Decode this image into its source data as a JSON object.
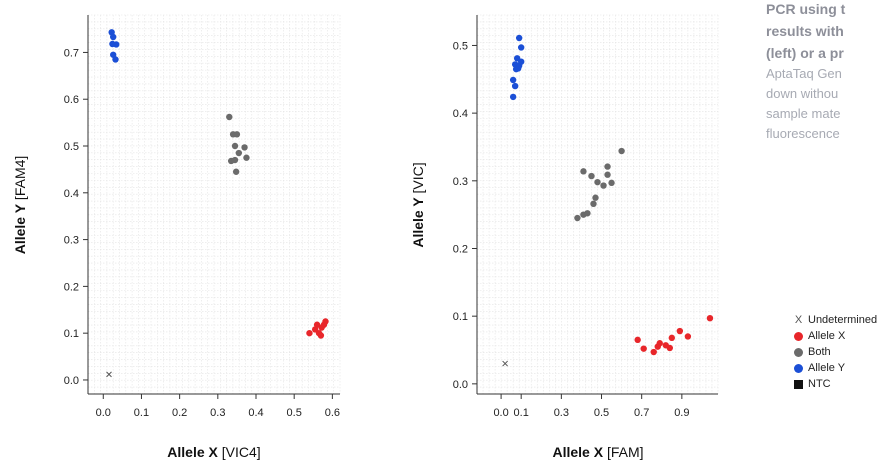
{
  "caption": {
    "title_lines": [
      "PCR using t",
      "results with",
      "(left) or a pr"
    ],
    "body_lines": [
      "AptaTaq Gen",
      "down withou",
      "sample mate",
      "fluorescence"
    ]
  },
  "legend": {
    "items": [
      {
        "label": "Undetermined",
        "marker": "x",
        "color": "#555555"
      },
      {
        "label": "Allele X",
        "marker": "dot",
        "color": "#e8262a"
      },
      {
        "label": "Both",
        "marker": "dot",
        "color": "#6b6b6b"
      },
      {
        "label": "Allele Y",
        "marker": "dot",
        "color": "#1b4fd6"
      },
      {
        "label": "NTC",
        "marker": "square",
        "color": "#111111"
      }
    ]
  },
  "chart_data": [
    {
      "type": "scatter",
      "title": "",
      "xlabel_bold": "Allele X",
      "xlabel_rest": " [VIC4]",
      "ylabel_bold": "Allele Y",
      "ylabel_rest": " [FAM4]",
      "xlim": [
        -0.04,
        0.62
      ],
      "ylim": [
        -0.03,
        0.78
      ],
      "x_ticks": [
        0.0,
        0.1,
        0.2,
        0.3,
        0.4,
        0.5,
        0.6
      ],
      "x_tick_labels": [
        "0.0",
        "0.1",
        "0.2",
        "0.3",
        "0.4",
        "0.5",
        "0.6"
      ],
      "y_ticks": [
        0.0,
        0.1,
        0.2,
        0.3,
        0.4,
        0.5,
        0.6,
        0.7
      ],
      "y_tick_labels": [
        "0.0",
        "0.1",
        "0.2",
        "0.3",
        "0.4",
        "0.5",
        "0.6",
        "0.7"
      ],
      "grid": true,
      "series": [
        {
          "name": "Undetermined",
          "marker": "x",
          "color": "#555555",
          "points": [
            [
              0.015,
              0.012
            ]
          ]
        },
        {
          "name": "Allele X",
          "marker": "dot",
          "color": "#e8262a",
          "points": [
            [
              0.54,
              0.1
            ],
            [
              0.555,
              0.108
            ],
            [
              0.56,
              0.118
            ],
            [
              0.565,
              0.1
            ],
            [
              0.57,
              0.095
            ],
            [
              0.572,
              0.112
            ],
            [
              0.578,
              0.118
            ],
            [
              0.582,
              0.125
            ]
          ]
        },
        {
          "name": "Both",
          "marker": "dot",
          "color": "#6b6b6b",
          "points": [
            [
              0.33,
              0.562
            ],
            [
              0.34,
              0.525
            ],
            [
              0.35,
              0.525
            ],
            [
              0.345,
              0.5
            ],
            [
              0.355,
              0.485
            ],
            [
              0.335,
              0.468
            ],
            [
              0.345,
              0.47
            ],
            [
              0.37,
              0.497
            ],
            [
              0.375,
              0.475
            ],
            [
              0.348,
              0.445
            ]
          ]
        },
        {
          "name": "Allele Y",
          "marker": "dot",
          "color": "#1b4fd6",
          "points": [
            [
              0.022,
              0.743
            ],
            [
              0.026,
              0.733
            ],
            [
              0.024,
              0.718
            ],
            [
              0.034,
              0.717
            ],
            [
              0.026,
              0.695
            ],
            [
              0.032,
              0.685
            ]
          ]
        }
      ]
    },
    {
      "type": "scatter",
      "title": "",
      "xlabel_bold": "Allele X",
      "xlabel_rest": " [FAM]",
      "ylabel_bold": "Allele Y",
      "ylabel_rest": " [VIC]",
      "xlim": [
        -0.12,
        1.08
      ],
      "ylim": [
        -0.015,
        0.545
      ],
      "x_ticks": [
        0.0,
        0.1,
        0.3,
        0.5,
        0.7,
        0.9
      ],
      "x_tick_labels": [
        "0.0",
        "0.1",
        "0.3",
        "0.5",
        "0.7",
        "0.9"
      ],
      "y_ticks": [
        0.0,
        0.1,
        0.2,
        0.3,
        0.4,
        0.5
      ],
      "y_tick_labels": [
        "0.0",
        "0.1",
        "0.2",
        "0.3",
        "0.4",
        "0.5"
      ],
      "grid": true,
      "series": [
        {
          "name": "Undetermined",
          "marker": "x",
          "color": "#555555",
          "points": [
            [
              0.02,
              0.03
            ]
          ]
        },
        {
          "name": "Allele X",
          "marker": "dot",
          "color": "#e8262a",
          "points": [
            [
              0.68,
              0.065
            ],
            [
              0.71,
              0.052
            ],
            [
              0.76,
              0.047
            ],
            [
              0.78,
              0.055
            ],
            [
              0.79,
              0.06
            ],
            [
              0.82,
              0.057
            ],
            [
              0.84,
              0.053
            ],
            [
              0.85,
              0.068
            ],
            [
              0.89,
              0.078
            ],
            [
              0.93,
              0.07
            ],
            [
              1.04,
              0.097
            ]
          ]
        },
        {
          "name": "Both",
          "marker": "dot",
          "color": "#6b6b6b",
          "points": [
            [
              0.38,
              0.245
            ],
            [
              0.41,
              0.25
            ],
            [
              0.43,
              0.252
            ],
            [
              0.41,
              0.314
            ],
            [
              0.46,
              0.266
            ],
            [
              0.47,
              0.275
            ],
            [
              0.45,
              0.307
            ],
            [
              0.48,
              0.298
            ],
            [
              0.51,
              0.293
            ],
            [
              0.53,
              0.309
            ],
            [
              0.53,
              0.321
            ],
            [
              0.55,
              0.297
            ],
            [
              0.6,
              0.344
            ]
          ]
        },
        {
          "name": "Allele Y",
          "marker": "dot",
          "color": "#1b4fd6",
          "points": [
            [
              0.09,
              0.511
            ],
            [
              0.1,
              0.497
            ],
            [
              0.08,
              0.481
            ],
            [
              0.1,
              0.476
            ],
            [
              0.07,
              0.472
            ],
            [
              0.075,
              0.465
            ],
            [
              0.085,
              0.466
            ],
            [
              0.09,
              0.47
            ],
            [
              0.06,
              0.449
            ],
            [
              0.07,
              0.44
            ],
            [
              0.06,
              0.424
            ]
          ]
        }
      ]
    }
  ]
}
